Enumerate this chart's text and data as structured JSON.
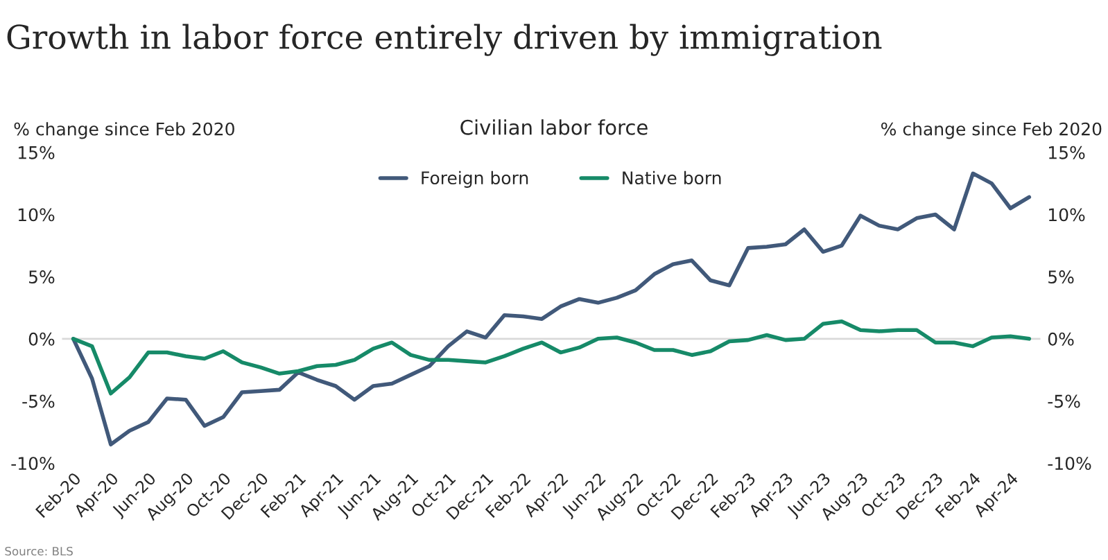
{
  "chart_data": {
    "type": "line",
    "title": "Growth in labor force entirely driven by immigration",
    "subtitle": "Civilian labor force",
    "ylabel": "% change since Feb 2020",
    "y2label": "% change since Feb 2020",
    "categories": [
      "Feb-20",
      null,
      "Apr-20",
      null,
      "Jun-20",
      null,
      "Aug-20",
      null,
      "Oct-20",
      null,
      "Dec-20",
      null,
      "Feb-21",
      null,
      "Apr-21",
      null,
      "Jun-21",
      null,
      "Aug-21",
      null,
      "Oct-21",
      null,
      "Dec-21",
      null,
      "Feb-22",
      null,
      "Apr-22",
      null,
      "Jun-22",
      null,
      "Aug-22",
      null,
      "Oct-22",
      null,
      "Dec-22",
      null,
      "Feb-23",
      null,
      "Apr-23",
      null,
      "Jun-23",
      null,
      "Aug-23",
      null,
      "Oct-23",
      null,
      "Dec-23",
      null,
      "Feb-24",
      null,
      "Apr-24",
      null
    ],
    "series": [
      {
        "name": "Foreign born",
        "color": "#41597a",
        "values": [
          0,
          -3.2,
          -8.5,
          -7.4,
          -6.7,
          -4.8,
          -4.9,
          -7.0,
          -6.3,
          -4.3,
          -4.2,
          -4.1,
          -2.7,
          -3.3,
          -3.8,
          -4.9,
          -3.8,
          -3.6,
          -2.9,
          -2.2,
          -0.6,
          0.6,
          0.1,
          1.9,
          1.8,
          1.6,
          2.6,
          3.2,
          2.9,
          3.3,
          3.9,
          5.2,
          6.0,
          6.3,
          4.7,
          4.3,
          7.3,
          7.4,
          7.6,
          8.8,
          7.0,
          7.5,
          9.9,
          9.1,
          8.8,
          9.7,
          10.0,
          8.8,
          13.3,
          12.5,
          10.5,
          11.4
        ]
      },
      {
        "name": "Native born",
        "color": "#168a68",
        "values": [
          0,
          -0.6,
          -4.4,
          -3.1,
          -1.1,
          -1.1,
          -1.4,
          -1.6,
          -1.0,
          -1.9,
          -2.3,
          -2.8,
          -2.6,
          -2.2,
          -2.1,
          -1.7,
          -0.8,
          -0.3,
          -1.3,
          -1.7,
          -1.7,
          -1.8,
          -1.9,
          -1.4,
          -0.8,
          -0.3,
          -1.1,
          -0.7,
          0.0,
          0.1,
          -0.3,
          -0.9,
          -0.9,
          -1.3,
          -1.0,
          -0.2,
          -0.1,
          0.3,
          -0.1,
          0.0,
          1.2,
          1.4,
          0.7,
          0.6,
          0.7,
          0.7,
          -0.3,
          -0.3,
          -0.6,
          0.1,
          0.2,
          0.0
        ]
      }
    ],
    "ylim": [
      -10,
      15
    ],
    "yticks": [
      {
        "value": -10,
        "label": "-10%"
      },
      {
        "value": -5,
        "label": "-5%"
      },
      {
        "value": 0,
        "label": "0%"
      },
      {
        "value": 5,
        "label": "5%"
      },
      {
        "value": 10,
        "label": "10%"
      },
      {
        "value": 15,
        "label": "15%"
      }
    ],
    "y2lim": [
      -10,
      15
    ],
    "y2ticks": [
      {
        "value": -10,
        "label": "-10%"
      },
      {
        "value": -5,
        "label": "-5%"
      },
      {
        "value": 0,
        "label": "0%"
      },
      {
        "value": 5,
        "label": "5%"
      },
      {
        "value": 10,
        "label": "10%"
      },
      {
        "value": 15,
        "label": "15%"
      }
    ],
    "ref_lines": [
      {
        "axis": "y",
        "value": 0,
        "color": "#d9d9d9"
      }
    ],
    "legend": "top",
    "grid": false,
    "line_style": "solid",
    "annotations": [
      "Source: BLS"
    ]
  }
}
